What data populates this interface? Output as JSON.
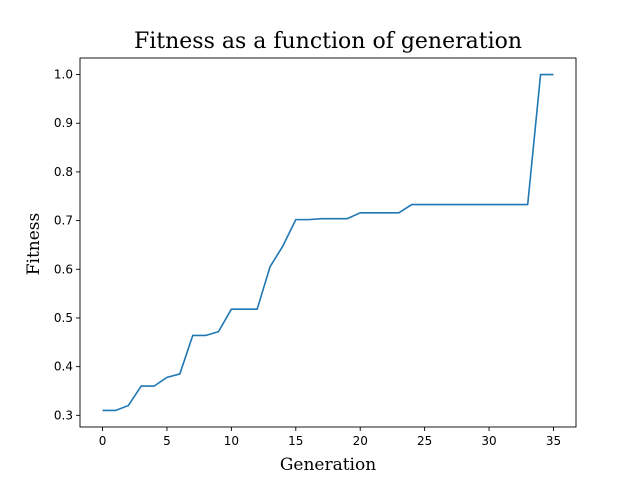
{
  "chart_data": {
    "type": "line",
    "title": "Fitness as a function of generation",
    "xlabel": "Generation",
    "ylabel": "Fitness",
    "xlim": [
      -1.75,
      36.75
    ],
    "ylim": [
      0.276,
      1.034
    ],
    "xticks": [
      0,
      5,
      10,
      15,
      20,
      25,
      30,
      35
    ],
    "yticks": [
      0.3,
      0.4,
      0.5,
      0.6,
      0.7,
      0.8,
      0.9,
      1.0
    ],
    "ytick_labels": [
      "0.3",
      "0.4",
      "0.5",
      "0.6",
      "0.7",
      "0.8",
      "0.9",
      "1.0"
    ],
    "grid": false,
    "line_color": "#1f77b4",
    "series": [
      {
        "x": [
          0,
          1,
          2,
          3,
          4,
          5,
          6,
          7,
          8,
          9,
          10,
          11,
          12,
          13,
          14,
          15,
          16,
          17,
          18,
          19,
          20,
          21,
          22,
          23,
          24,
          25,
          26,
          27,
          28,
          29,
          30,
          31,
          32,
          33,
          34,
          35
        ],
        "values": [
          0.31,
          0.31,
          0.32,
          0.36,
          0.36,
          0.378,
          0.385,
          0.464,
          0.464,
          0.472,
          0.518,
          0.518,
          0.518,
          0.605,
          0.648,
          0.702,
          0.702,
          0.704,
          0.704,
          0.704,
          0.716,
          0.716,
          0.716,
          0.716,
          0.733,
          0.733,
          0.733,
          0.733,
          0.733,
          0.733,
          0.733,
          0.733,
          0.733,
          0.733,
          1.0,
          1.0
        ]
      }
    ]
  }
}
